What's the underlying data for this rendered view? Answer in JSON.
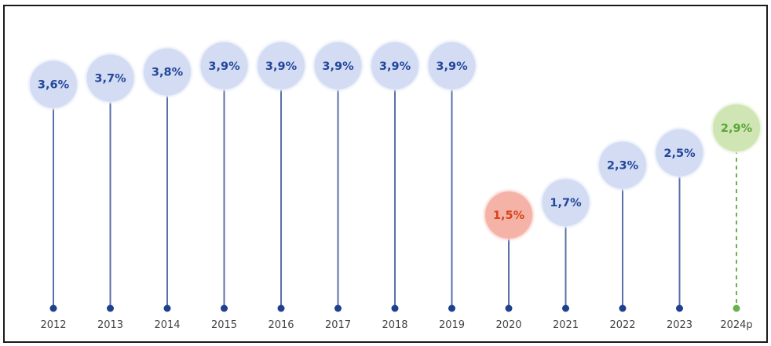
{
  "chart_data": {
    "type": "lollipop",
    "categories": [
      "2012",
      "2013",
      "2014",
      "2015",
      "2016",
      "2017",
      "2018",
      "2019",
      "2020",
      "2021",
      "2022",
      "2023",
      "2024p"
    ],
    "values": [
      3.6,
      3.7,
      3.8,
      3.9,
      3.9,
      3.9,
      3.9,
      3.9,
      1.5,
      1.7,
      2.3,
      2.5,
      2.9
    ],
    "labels": [
      "3,6%",
      "3,7%",
      "3,8%",
      "3,9%",
      "3,9%",
      "3,9%",
      "3,9%",
      "3,9%",
      "1,5%",
      "1,7%",
      "2,3%",
      "2,5%",
      "2,9%"
    ],
    "status": [
      "normal",
      "normal",
      "normal",
      "normal",
      "normal",
      "normal",
      "normal",
      "normal",
      "low",
      "normal",
      "normal",
      "normal",
      "projected"
    ],
    "title": "",
    "xlabel": "",
    "ylabel": "",
    "ylim": [
      0,
      4.2
    ],
    "grid": false,
    "legend": "none"
  },
  "colors": {
    "normal_bubble": "#d3dcf3",
    "normal_bubble_glow": "#e8edf9",
    "normal_text": "#23479a",
    "stem": "#5b6fa8",
    "dot": "#1f3f8f",
    "low_bubble": "#f5b3a8",
    "low_bubble_glow": "#fad6cf",
    "low_text": "#d8431b",
    "projected_bubble": "#cfe5b3",
    "projected_bubble_glow": "#e6f2d8",
    "projected_text": "#5ba63a",
    "projected_stem": "#6ab04c",
    "axis_label": "#444444"
  }
}
